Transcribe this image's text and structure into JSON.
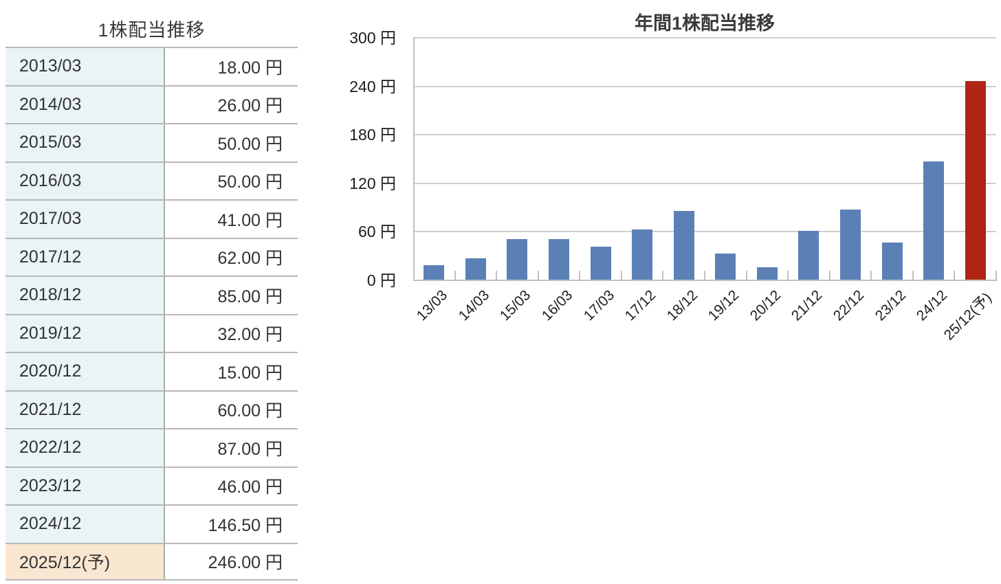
{
  "table": {
    "title": "1株配当推移",
    "rows": [
      {
        "period": "2013/03",
        "value": "18.00 円",
        "forecast": false
      },
      {
        "period": "2014/03",
        "value": "26.00 円",
        "forecast": false
      },
      {
        "period": "2015/03",
        "value": "50.00 円",
        "forecast": false
      },
      {
        "period": "2016/03",
        "value": "50.00 円",
        "forecast": false
      },
      {
        "period": "2017/03",
        "value": "41.00 円",
        "forecast": false
      },
      {
        "period": "2017/12",
        "value": "62.00 円",
        "forecast": false
      },
      {
        "period": "2018/12",
        "value": "85.00 円",
        "forecast": false
      },
      {
        "period": "2019/12",
        "value": "32.00 円",
        "forecast": false
      },
      {
        "period": "2020/12",
        "value": "15.00 円",
        "forecast": false
      },
      {
        "period": "2021/12",
        "value": "60.00 円",
        "forecast": false
      },
      {
        "period": "2022/12",
        "value": "87.00 円",
        "forecast": false
      },
      {
        "period": "2023/12",
        "value": "46.00 円",
        "forecast": false
      },
      {
        "period": "2024/12",
        "value": "146.50 円",
        "forecast": false
      },
      {
        "period": "2025/12(予)",
        "value": "246.00 円",
        "forecast": true
      }
    ]
  },
  "chart_data": {
    "type": "bar",
    "title": "年間1株配当推移",
    "categories": [
      "13/03",
      "14/03",
      "15/03",
      "16/03",
      "17/03",
      "17/12",
      "18/12",
      "19/12",
      "20/12",
      "21/12",
      "22/12",
      "23/12",
      "24/12",
      "25/12(予)"
    ],
    "values": [
      18,
      26,
      50,
      50,
      41,
      62,
      85,
      32,
      15,
      60,
      87,
      46,
      146.5,
      246
    ],
    "forecast_index": 13,
    "xlabel": "",
    "ylabel": "",
    "ylim": [
      0,
      300
    ],
    "yticks": [
      0,
      60,
      120,
      180,
      240,
      300
    ],
    "ytick_suffix": " 円",
    "grid": true,
    "legend": "none",
    "bar_color": "#5b80b6",
    "forecast_bar_color": "#b02515"
  },
  "colors": {
    "table_label_bg": "#eaf4f6",
    "table_forecast_bg": "#f9e6d1",
    "table_border": "#b7b7b7",
    "grid": "#cdcdcd",
    "axis": "#c0c0c0",
    "text": "#333333"
  }
}
